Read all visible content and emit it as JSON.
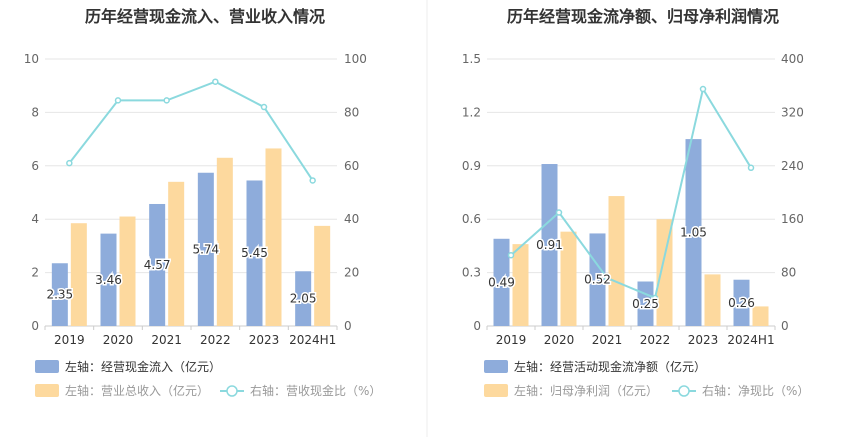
{
  "chart_data": [
    {
      "type": "bar",
      "title": "历年经营现金流入、营业收入情况",
      "categories": [
        "2019",
        "2020",
        "2021",
        "2022",
        "2023",
        "2024H1"
      ],
      "y_left_ticks": [
        "0",
        "2",
        "4",
        "6",
        "8",
        "10"
      ],
      "y_right_ticks": [
        "0",
        "20",
        "40",
        "60",
        "80",
        "100"
      ],
      "ylim_left": [
        0,
        10
      ],
      "ylim_right": [
        0,
        100
      ],
      "series": [
        {
          "name": "左轴：经营现金流入（亿元）",
          "axis": "left",
          "kind": "bar",
          "color": "#8EACDB",
          "values": [
            2.35,
            3.46,
            4.57,
            5.74,
            5.45,
            2.05
          ],
          "labels": [
            "2.35",
            "3.46",
            "4.57",
            "5.74",
            "5.45",
            "2.05"
          ]
        },
        {
          "name": "左轴：营业总收入（亿元）",
          "axis": "left",
          "kind": "bar",
          "color": "#FDD99E",
          "values": [
            3.85,
            4.1,
            5.4,
            6.3,
            6.65,
            3.75
          ]
        },
        {
          "name": "右轴：营收现金比（%）",
          "axis": "right",
          "kind": "line",
          "color": "#8BD9DE",
          "values": [
            61,
            84.5,
            84.5,
            91.5,
            82,
            54.5
          ]
        }
      ]
    },
    {
      "type": "bar",
      "title": "历年经营现金流净额、归母净利润情况",
      "categories": [
        "2019",
        "2020",
        "2021",
        "2022",
        "2023",
        "2024H1"
      ],
      "y_left_ticks": [
        "0",
        "0.3",
        "0.6",
        "0.9",
        "1.2",
        "1.5"
      ],
      "y_right_ticks": [
        "0",
        "80",
        "160",
        "240",
        "320",
        "400"
      ],
      "ylim_left": [
        0,
        1.5
      ],
      "ylim_right": [
        0,
        400
      ],
      "series": [
        {
          "name": "左轴：经营活动现金流净额（亿元）",
          "axis": "left",
          "kind": "bar",
          "color": "#8EACDB",
          "values": [
            0.49,
            0.91,
            0.52,
            0.25,
            1.05,
            0.26
          ],
          "labels": [
            "0.49",
            "0.91",
            "0.52",
            "0.25",
            "1.05",
            "0.26"
          ]
        },
        {
          "name": "左轴：归母净利润（亿元）",
          "axis": "left",
          "kind": "bar",
          "color": "#FDD99E",
          "values": [
            0.46,
            0.53,
            0.73,
            0.6,
            0.29,
            0.11
          ]
        },
        {
          "name": "右轴：净现比（%）",
          "axis": "right",
          "kind": "line",
          "color": "#8BD9DE",
          "values": [
            106,
            170,
            72,
            42,
            355,
            237
          ]
        }
      ]
    }
  ]
}
